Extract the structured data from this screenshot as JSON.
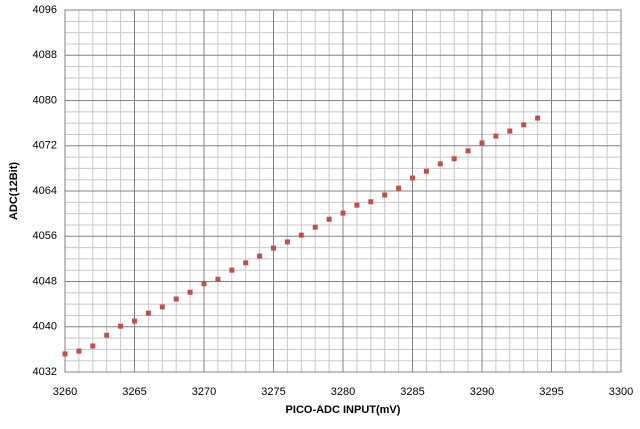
{
  "chart_data": {
    "type": "scatter",
    "x_label": "PICO-ADC INPUT(mV)",
    "y_label": "ADC(12Bit)",
    "series": [
      {
        "color": "#c0504d",
        "x": [
          3260,
          3261,
          3262,
          3263,
          3264,
          3265,
          3266,
          3267,
          3268,
          3269,
          3270,
          3271,
          3272,
          3273,
          3274,
          3275,
          3276,
          3277,
          3278,
          3279,
          3280,
          3281,
          3282,
          3283,
          3284,
          3285,
          3286,
          3287,
          3288,
          3289,
          3290,
          3291,
          3292,
          3293,
          3294
        ],
        "values": [
          4035.2,
          4035.7,
          4036.6,
          4038.5,
          4040.1,
          4041.0,
          4042.4,
          4043.5,
          4044.9,
          4046.1,
          4047.6,
          4048.4,
          4050.0,
          4051.3,
          4052.5,
          4053.9,
          4055.0,
          4056.2,
          4057.6,
          4059.0,
          4060.1,
          4061.5,
          4062.1,
          4063.3,
          4064.5,
          4066.3,
          4067.5,
          4068.8,
          4069.7,
          4071.1,
          4072.5,
          4073.7,
          4074.6,
          4075.7,
          4076.9
        ]
      }
    ],
    "xlim": [
      3260,
      3300
    ],
    "xticks": [
      3260,
      3265,
      3270,
      3275,
      3280,
      3285,
      3290,
      3295,
      3300
    ],
    "ylim": [
      4032,
      4096
    ],
    "yticks": [
      4032,
      4040,
      4048,
      4056,
      4064,
      4072,
      4080,
      4088,
      4096
    ],
    "grid": true
  }
}
